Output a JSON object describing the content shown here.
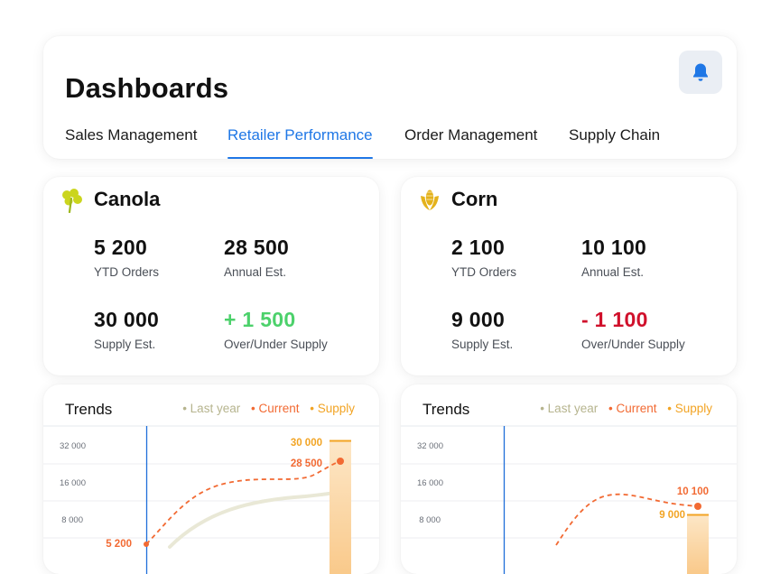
{
  "header": {
    "title": "Dashboards",
    "tabs": [
      {
        "label": "Sales Management",
        "active": false
      },
      {
        "label": "Retailer Performance",
        "active": true
      },
      {
        "label": "Order Management",
        "active": false
      },
      {
        "label": "Supply Chain",
        "active": false
      }
    ],
    "notification_icon": "bell-icon"
  },
  "colors": {
    "accent": "#1f77e6",
    "positive": "#4cd16b",
    "negative": "#d0102b",
    "last_year": "#b6b48e",
    "current": "#f26a33",
    "supply": "#f2a424"
  },
  "crops": [
    {
      "name": "Canola",
      "icon": "canola-icon",
      "stats": {
        "ytd_orders": {
          "value": "5 200",
          "label": "YTD Orders"
        },
        "annual_est": {
          "value": "28 500",
          "label": "Annual Est."
        },
        "supply_est": {
          "value": "30 000",
          "label": "Supply Est."
        },
        "over_under": {
          "value": "+ 1 500",
          "label": "Over/Under Supply",
          "status": "positive"
        }
      }
    },
    {
      "name": "Corn",
      "icon": "corn-icon",
      "stats": {
        "ytd_orders": {
          "value": "2 100",
          "label": "YTD Orders"
        },
        "annual_est": {
          "value": "10 100",
          "label": "Annual Est."
        },
        "supply_est": {
          "value": "9 000",
          "label": "Supply Est."
        },
        "over_under": {
          "value": "- 1 100",
          "label": "Over/Under Supply",
          "status": "negative"
        }
      }
    }
  ],
  "trends": {
    "title": "Trends",
    "legend": [
      "Last year",
      "Current",
      "Supply"
    ]
  },
  "chart_data": [
    {
      "type": "line",
      "y_ticks": [
        "32 000",
        "16 000",
        "8 000"
      ],
      "series": [
        {
          "name": "Last year",
          "style": "solid-thick"
        },
        {
          "name": "Current",
          "style": "dashed",
          "start": 5200,
          "end": 28500
        },
        {
          "name": "Supply",
          "style": "bar",
          "value": 30000
        }
      ],
      "annotations": [
        "5 200",
        "28 500",
        "30 000"
      ]
    },
    {
      "type": "line",
      "y_ticks": [
        "32 000",
        "16 000",
        "8 000"
      ],
      "series": [
        {
          "name": "Current",
          "style": "dashed",
          "end": 10100
        },
        {
          "name": "Supply",
          "style": "bar",
          "value": 9000
        }
      ],
      "annotations": [
        "10 100",
        "9 000"
      ]
    }
  ]
}
